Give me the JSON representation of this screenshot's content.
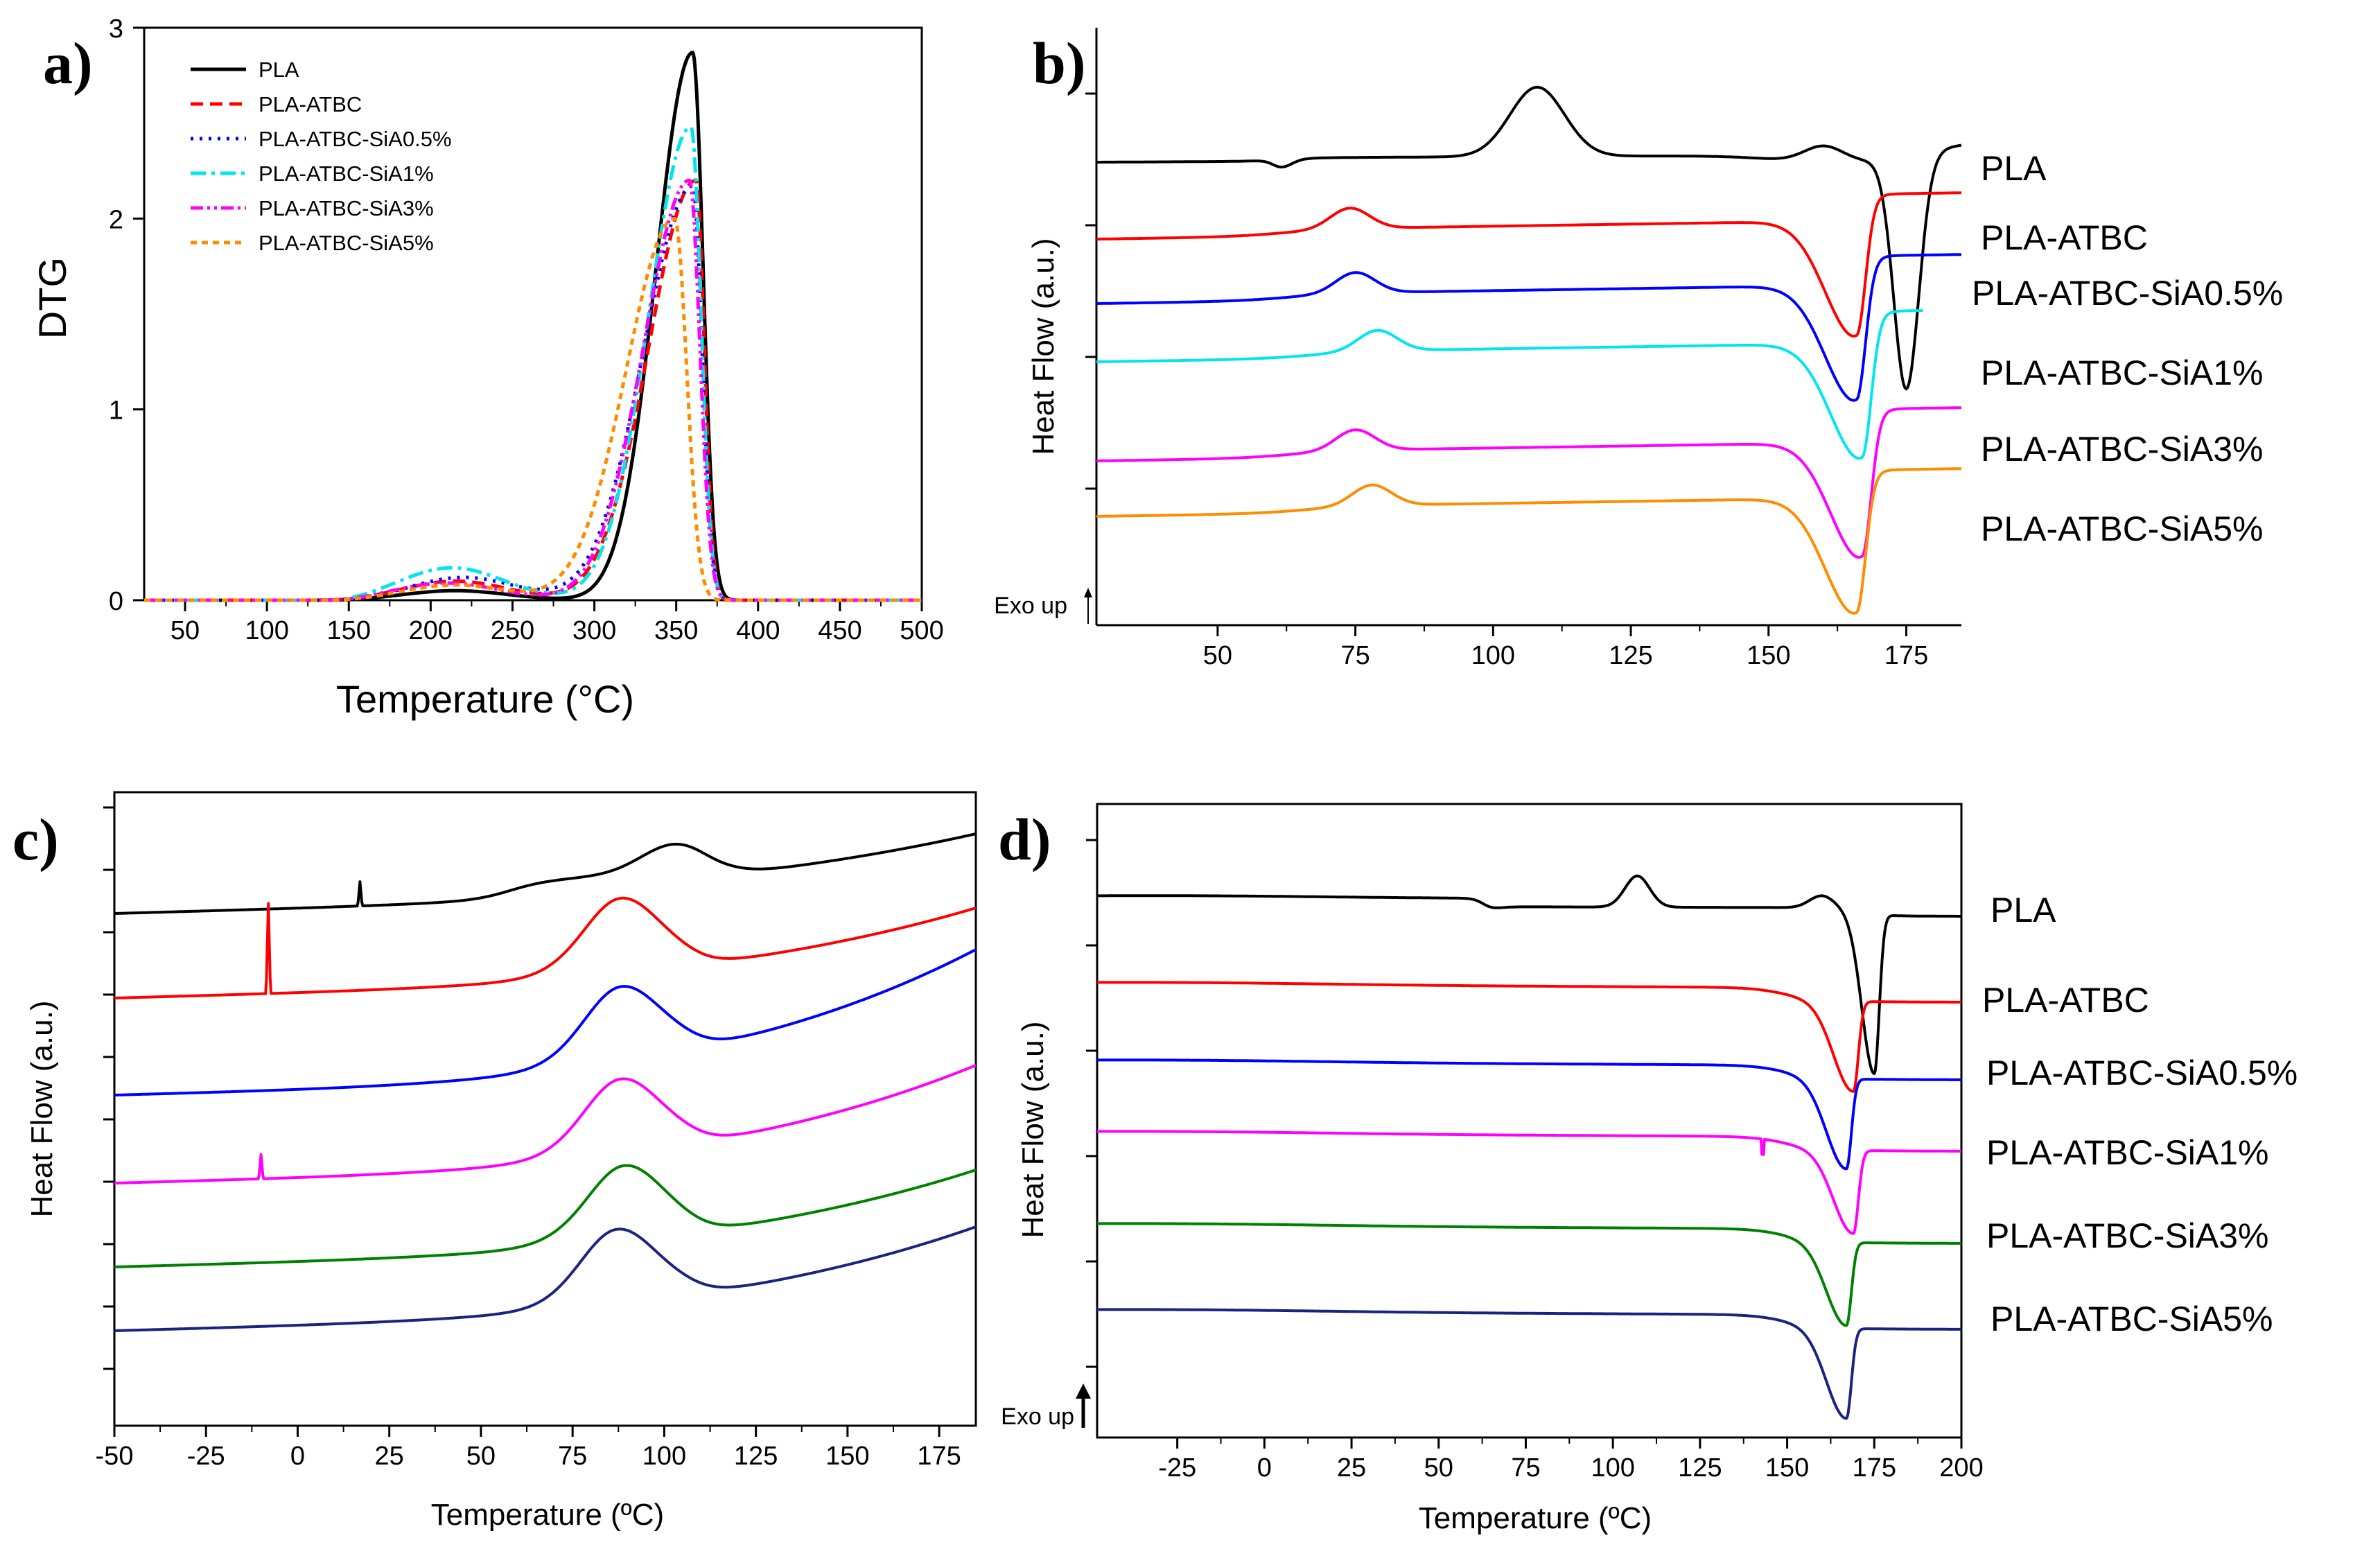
{
  "chart_data": [
    {
      "id": "a",
      "type": "line",
      "panel_label": "a)",
      "xlabel": "Temperature (°C)",
      "ylabel": "DTG",
      "xlim": [
        25,
        500
      ],
      "ylim": [
        0,
        3
      ],
      "xticks": [
        50,
        100,
        150,
        200,
        250,
        300,
        350,
        400,
        450,
        500
      ],
      "yticks": [
        0,
        1,
        2,
        3
      ],
      "legend_position": "top-left",
      "series": [
        {
          "name": "PLA",
          "color": "#000000",
          "dash": "solid",
          "peak": [
            360,
            2.87
          ],
          "onset": 300,
          "end": 380,
          "shoulder": [
            215,
            0.05
          ]
        },
        {
          "name": "PLA-ATBC",
          "color": "#ff0000",
          "dash": "dash",
          "peak": [
            362,
            2.2
          ],
          "onset": 285,
          "end": 378,
          "shoulder": [
            215,
            0.1
          ]
        },
        {
          "name": "PLA-ATBC-SiA0.5%",
          "color": "#0000ff",
          "dash": "dot",
          "peak": [
            360,
            2.17
          ],
          "onset": 280,
          "end": 378,
          "shoulder": [
            220,
            0.12
          ]
        },
        {
          "name": "PLA-ATBC-SiA1%",
          "color": "#00e5ee",
          "dash": "dashdot",
          "peak": [
            359,
            2.48
          ],
          "onset": 290,
          "end": 378,
          "shoulder": [
            213,
            0.17
          ]
        },
        {
          "name": "PLA-ATBC-SiA3%",
          "color": "#ff00ff",
          "dash": "dashdotdot",
          "peak": [
            358,
            2.2
          ],
          "onset": 283,
          "end": 378,
          "shoulder": [
            210,
            0.09
          ]
        },
        {
          "name": "PLA-ATBC-SiA5%",
          "color": "#ff8c00",
          "dash": "shortdash",
          "peak": [
            349,
            2.0
          ],
          "onset": 270,
          "end": 372,
          "shoulder": [
            215,
            0.08
          ]
        }
      ]
    },
    {
      "id": "b",
      "type": "line",
      "panel_label": "b)",
      "xlabel": "",
      "ylabel": "Heat Flow (a.u.)",
      "annotation": "Exo up",
      "xlim": [
        28,
        185
      ],
      "xticks": [
        50,
        75,
        100,
        125,
        150,
        175
      ],
      "series": [
        {
          "name": "PLA",
          "color": "#000000",
          "tg": 60,
          "cold_cryst_peak": 108,
          "melt_peak": 175
        },
        {
          "name": "PLA-ATBC",
          "color": "#ff0000",
          "cold_cryst_peak": 74,
          "melt_peak": 166
        },
        {
          "name": "PLA-ATBC-SiA0.5%",
          "color": "#0000ff",
          "cold_cryst_peak": 75,
          "melt_peak": 166
        },
        {
          "name": "PLA-ATBC-SiA1%",
          "color": "#00e5ee",
          "cold_cryst_peak": 79,
          "melt_peak": 167
        },
        {
          "name": "PLA-ATBC-SiA3%",
          "color": "#ff00ff",
          "cold_cryst_peak": 75,
          "melt_peak": 167
        },
        {
          "name": "PLA-ATBC-SiA5%",
          "color": "#ff8c00",
          "cold_cryst_peak": 78,
          "melt_peak": 166
        }
      ]
    },
    {
      "id": "c",
      "type": "line",
      "panel_label": "c)",
      "xlabel": "Temperature (ºC)",
      "ylabel": "Heat Flow (a.u.)",
      "xlim": [
        -50,
        185
      ],
      "xticks": [
        -50,
        -25,
        0,
        25,
        50,
        75,
        100,
        125,
        150,
        175
      ],
      "series": [
        {
          "name": "PLA",
          "color": "#000000",
          "exo_peak": 103
        },
        {
          "name": "PLA-ATBC",
          "color": "#ff0000",
          "exo_peak": 88
        },
        {
          "name": "PLA-ATBC-SiA0.5%",
          "color": "#0000ff",
          "exo_peak": 88
        },
        {
          "name": "PLA-ATBC-SiA1%",
          "color": "#ff00ff",
          "exo_peak": 88
        },
        {
          "name": "PLA-ATBC-SiA3%",
          "color": "#008000",
          "exo_peak": 89
        },
        {
          "name": "PLA-ATBC-SiA5%",
          "color": "#1a237e",
          "exo_peak": 87
        }
      ]
    },
    {
      "id": "d",
      "type": "line",
      "panel_label": "d)",
      "xlabel": "Temperature (ºC)",
      "ylabel": "Heat Flow (a.u.)",
      "annotation": "Exo up",
      "xlim": [
        -48,
        200
      ],
      "xticks": [
        -25,
        0,
        25,
        50,
        75,
        100,
        125,
        150,
        175,
        200
      ],
      "series": [
        {
          "name": "PLA",
          "color": "#000000",
          "cold_cryst_peak": 107,
          "melt_peak": 175
        },
        {
          "name": "PLA-ATBC",
          "color": "#ff0000",
          "melt_peak": 169
        },
        {
          "name": "PLA-ATBC-SiA0.5%",
          "color": "#0000ff",
          "melt_peak": 167
        },
        {
          "name": "PLA-ATBC-SiA1%",
          "color": "#ff00ff",
          "melt_peak": 169
        },
        {
          "name": "PLA-ATBC-SiA3%",
          "color": "#008000",
          "melt_peak": 167
        },
        {
          "name": "PLA-ATBC-SiA5%",
          "color": "#1a237e",
          "melt_peak": 167
        }
      ]
    }
  ]
}
